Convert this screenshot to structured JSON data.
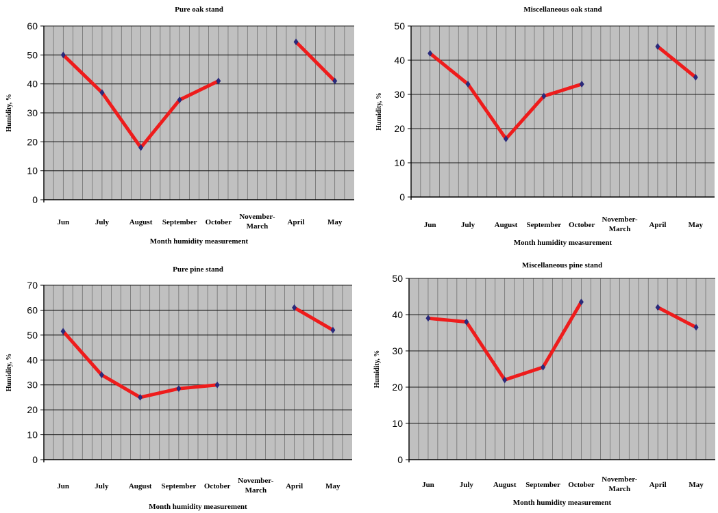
{
  "figure": {
    "line_color": "#ee1c1c",
    "marker_color": "#2a2a7a",
    "plot_bg": "#c0c0c0",
    "grid_color": "#1a1a1a"
  },
  "chart_data": [
    {
      "type": "line",
      "title": "Pure oak stand",
      "xlabel": "Month humidity measurement",
      "ylabel": "Humidity, %",
      "categories": [
        "Jun",
        "July",
        "August",
        "September",
        "October",
        "November-March",
        "April",
        "May"
      ],
      "ylim": [
        0,
        60
      ],
      "yticks": [
        0,
        10,
        20,
        30,
        40,
        50,
        60
      ],
      "grid": true,
      "series": [
        {
          "values": [
            50,
            37,
            18,
            34.5,
            41,
            null,
            54.5,
            41
          ]
        }
      ]
    },
    {
      "type": "line",
      "title": "Miscellaneous oak stand",
      "xlabel": "Month humidity measurement",
      "ylabel": "Humidity, %",
      "categories": [
        "Jun",
        "July",
        "August",
        "September",
        "October",
        "November-March",
        "April",
        "May"
      ],
      "ylim": [
        0,
        50
      ],
      "yticks": [
        0,
        10,
        20,
        30,
        40,
        50
      ],
      "grid": true,
      "series": [
        {
          "values": [
            42,
            33,
            17,
            29.5,
            33,
            null,
            44,
            35
          ]
        }
      ]
    },
    {
      "type": "line",
      "title": "Pure pine stand",
      "xlabel": "Month humidity measurement",
      "ylabel": "Humidity, %",
      "categories": [
        "Jun",
        "July",
        "August",
        "September",
        "October",
        "November-March",
        "April",
        "May"
      ],
      "ylim": [
        0,
        70
      ],
      "yticks": [
        0,
        10,
        20,
        30,
        40,
        50,
        60,
        70
      ],
      "grid": true,
      "series": [
        {
          "values": [
            51.5,
            34,
            25,
            28.5,
            30,
            null,
            61,
            52
          ]
        }
      ]
    },
    {
      "type": "line",
      "title": "Miscellaneous pine stand",
      "xlabel": "Month humidity measurement",
      "ylabel": "Humidity, %",
      "categories": [
        "Jun",
        "July",
        "August",
        "September",
        "October",
        "November-March",
        "April",
        "May"
      ],
      "ylim": [
        0,
        50
      ],
      "yticks": [
        0,
        10,
        20,
        30,
        40,
        50
      ],
      "grid": true,
      "series": [
        {
          "values": [
            39,
            38,
            22,
            25.5,
            43.5,
            null,
            42,
            36.5
          ]
        }
      ]
    }
  ]
}
